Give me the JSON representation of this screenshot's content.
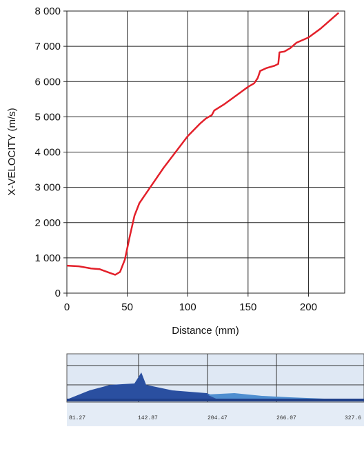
{
  "chart_data": {
    "type": "line",
    "x_label": "Distance (mm)",
    "y_label": "X-VELOCITY  (m/s)",
    "xlim": [
      0,
      230
    ],
    "ylim": [
      0,
      8000
    ],
    "xticks": [
      0,
      50,
      100,
      150,
      200
    ],
    "yticks": [
      {
        "value": 0,
        "label": "0"
      },
      {
        "value": 1000,
        "label": "1 000"
      },
      {
        "value": 2000,
        "label": "2 000"
      },
      {
        "value": 3000,
        "label": "3 000"
      },
      {
        "value": 4000,
        "label": "4 000"
      },
      {
        "value": 5000,
        "label": "5 000"
      },
      {
        "value": 6000,
        "label": "6 000"
      },
      {
        "value": 7000,
        "label": "7 000"
      },
      {
        "value": 8000,
        "label": "8 000"
      }
    ],
    "grid": true,
    "series": [
      {
        "color": "#e3202a",
        "x": [
          0,
          10,
          20,
          27,
          35,
          40,
          44,
          48,
          52,
          56,
          60,
          65,
          70,
          80,
          90,
          100,
          110,
          115,
          120,
          122,
          130,
          140,
          150,
          155,
          158,
          160,
          165,
          172,
          175,
          176,
          180,
          185,
          190,
          200,
          210,
          220,
          225
        ],
        "values": [
          780,
          760,
          700,
          680,
          580,
          520,
          600,
          950,
          1600,
          2200,
          2550,
          2800,
          3050,
          3550,
          4000,
          4450,
          4800,
          4950,
          5050,
          5180,
          5350,
          5600,
          5850,
          5950,
          6100,
          6300,
          6380,
          6450,
          6500,
          6830,
          6850,
          6950,
          7100,
          7250,
          7500,
          7800,
          7950
        ]
      }
    ]
  },
  "strip": {
    "labels": [
      "81.27",
      "142.87",
      "204.47",
      "266.07",
      "327.6"
    ]
  }
}
